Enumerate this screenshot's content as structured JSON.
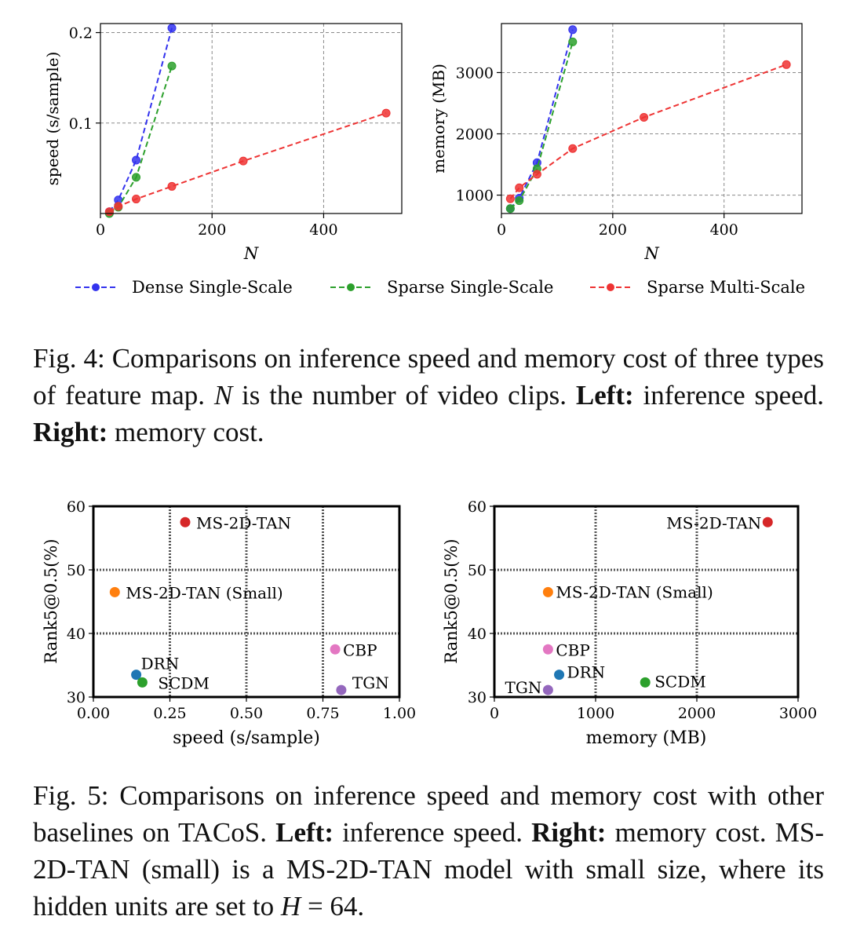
{
  "figure4": {
    "legend": [
      {
        "name": "Dense Single-Scale",
        "color": "#3333ee"
      },
      {
        "name": "Sparse Single-Scale",
        "color": "#2ca02c"
      },
      {
        "name": "Sparse Multi-Scale",
        "color": "#ee3333"
      }
    ],
    "caption": {
      "text1": "Fig. 4: Comparisons on inference speed and memory cost of three types of feature map. ",
      "var": "N",
      "text2": " is the number of video clips. ",
      "left_bold": "Left:",
      "left_text": " inference speed. ",
      "right_bold": "Right:",
      "right_text": " memory cost."
    }
  },
  "figure5": {
    "caption": {
      "text1": "Fig. 5: Comparisons on inference speed and memory cost with other baselines on TACoS. ",
      "left_bold": "Left:",
      "left_text": " inference speed. ",
      "right_bold": "Right:",
      "right_text": " memory cost. MS-2D-TAN (small) is a MS-2D-TAN model with small size, where its hidden units are set to ",
      "eq_var": "H",
      "eq_rest": " = 64."
    }
  },
  "chart_data": [
    {
      "id": "fig4-speed",
      "type": "line",
      "xlabel": "N",
      "ylabel": "speed (s/sample)",
      "xlim": [
        0,
        540
      ],
      "ylim": [
        0.0,
        0.21
      ],
      "xticks": [
        0,
        200,
        400
      ],
      "yticks": [
        0.1,
        0.2
      ],
      "ytick_labels": [
        "0.1",
        "0.2"
      ],
      "grid": true,
      "series": [
        {
          "name": "Dense Single-Scale",
          "color": "#3333ee",
          "x": [
            16,
            32,
            64,
            128
          ],
          "y": [
            0.002,
            0.015,
            0.059,
            0.205
          ]
        },
        {
          "name": "Sparse Single-Scale",
          "color": "#2ca02c",
          "x": [
            16,
            32,
            64,
            128
          ],
          "y": [
            0.0,
            0.007,
            0.04,
            0.163
          ]
        },
        {
          "name": "Sparse Multi-Scale",
          "color": "#ee3333",
          "x": [
            16,
            32,
            64,
            128,
            256,
            512
          ],
          "y": [
            0.002,
            0.008,
            0.016,
            0.03,
            0.058,
            0.111
          ]
        }
      ]
    },
    {
      "id": "fig4-memory",
      "type": "line",
      "xlabel": "N",
      "ylabel": "memory (MB)",
      "xlim": [
        0,
        540
      ],
      "ylim": [
        700,
        3800
      ],
      "xticks": [
        0,
        200,
        400
      ],
      "yticks": [
        1000,
        2000,
        3000
      ],
      "ytick_labels": [
        "1000",
        "2000",
        "3000"
      ],
      "grid": true,
      "series": [
        {
          "name": "Dense Single-Scale",
          "color": "#3333ee",
          "x": [
            16,
            32,
            64,
            128
          ],
          "y": [
            780,
            950,
            1530,
            3700
          ]
        },
        {
          "name": "Sparse Single-Scale",
          "color": "#2ca02c",
          "x": [
            16,
            32,
            64,
            128
          ],
          "y": [
            780,
            910,
            1430,
            3500
          ]
        },
        {
          "name": "Sparse Multi-Scale",
          "color": "#ee3333",
          "x": [
            16,
            32,
            64,
            128,
            256,
            512
          ],
          "y": [
            940,
            1120,
            1340,
            1760,
            2270,
            3130
          ]
        }
      ]
    },
    {
      "id": "fig5-speed",
      "type": "scatter",
      "xlabel": "speed (s/sample)",
      "ylabel": "Rank5@0.5(%)",
      "xlim": [
        0,
        1.0
      ],
      "ylim": [
        30,
        60
      ],
      "xticks": [
        0,
        0.25,
        0.5,
        0.75,
        1.0
      ],
      "xtick_labels": [
        "0.00",
        "0.25",
        "0.50",
        "0.75",
        "1.00"
      ],
      "yticks": [
        30,
        40,
        50,
        60
      ],
      "ytick_labels": [
        "30",
        "40",
        "50",
        "60"
      ],
      "grid": true,
      "points": [
        {
          "label": "MS-2D-TAN",
          "x": 0.3,
          "y": 57.5,
          "color": "#d62728"
        },
        {
          "label": "MS-2D-TAN (Small)",
          "x": 0.07,
          "y": 46.5,
          "color": "#ff7f0e"
        },
        {
          "label": "CBP",
          "x": 0.79,
          "y": 37.5,
          "color": "#e377c2"
        },
        {
          "label": "DRN",
          "x": 0.14,
          "y": 33.5,
          "color": "#1f77b4"
        },
        {
          "label": "SCDM",
          "x": 0.16,
          "y": 32.3,
          "color": "#2ca02c"
        },
        {
          "label": "TGN",
          "x": 0.81,
          "y": 31.1,
          "color": "#9467bd"
        }
      ]
    },
    {
      "id": "fig5-memory",
      "type": "scatter",
      "xlabel": "memory (MB)",
      "ylabel": "Rank5@0.5(%)",
      "xlim": [
        0,
        3000
      ],
      "ylim": [
        30,
        60
      ],
      "xticks": [
        0,
        1000,
        2000,
        3000
      ],
      "xtick_labels": [
        "0",
        "1000",
        "2000",
        "3000"
      ],
      "yticks": [
        30,
        40,
        50,
        60
      ],
      "ytick_labels": [
        "30",
        "40",
        "50",
        "60"
      ],
      "grid": true,
      "points": [
        {
          "label": "MS-2D-TAN",
          "x": 2700,
          "y": 57.5,
          "color": "#d62728"
        },
        {
          "label": "MS-2D-TAN (Small)",
          "x": 530,
          "y": 46.5,
          "color": "#ff7f0e"
        },
        {
          "label": "CBP",
          "x": 530,
          "y": 37.5,
          "color": "#e377c2"
        },
        {
          "label": "DRN",
          "x": 640,
          "y": 33.5,
          "color": "#1f77b4"
        },
        {
          "label": "SCDM",
          "x": 1490,
          "y": 32.3,
          "color": "#2ca02c"
        },
        {
          "label": "TGN",
          "x": 530,
          "y": 31.1,
          "color": "#9467bd"
        }
      ]
    }
  ]
}
